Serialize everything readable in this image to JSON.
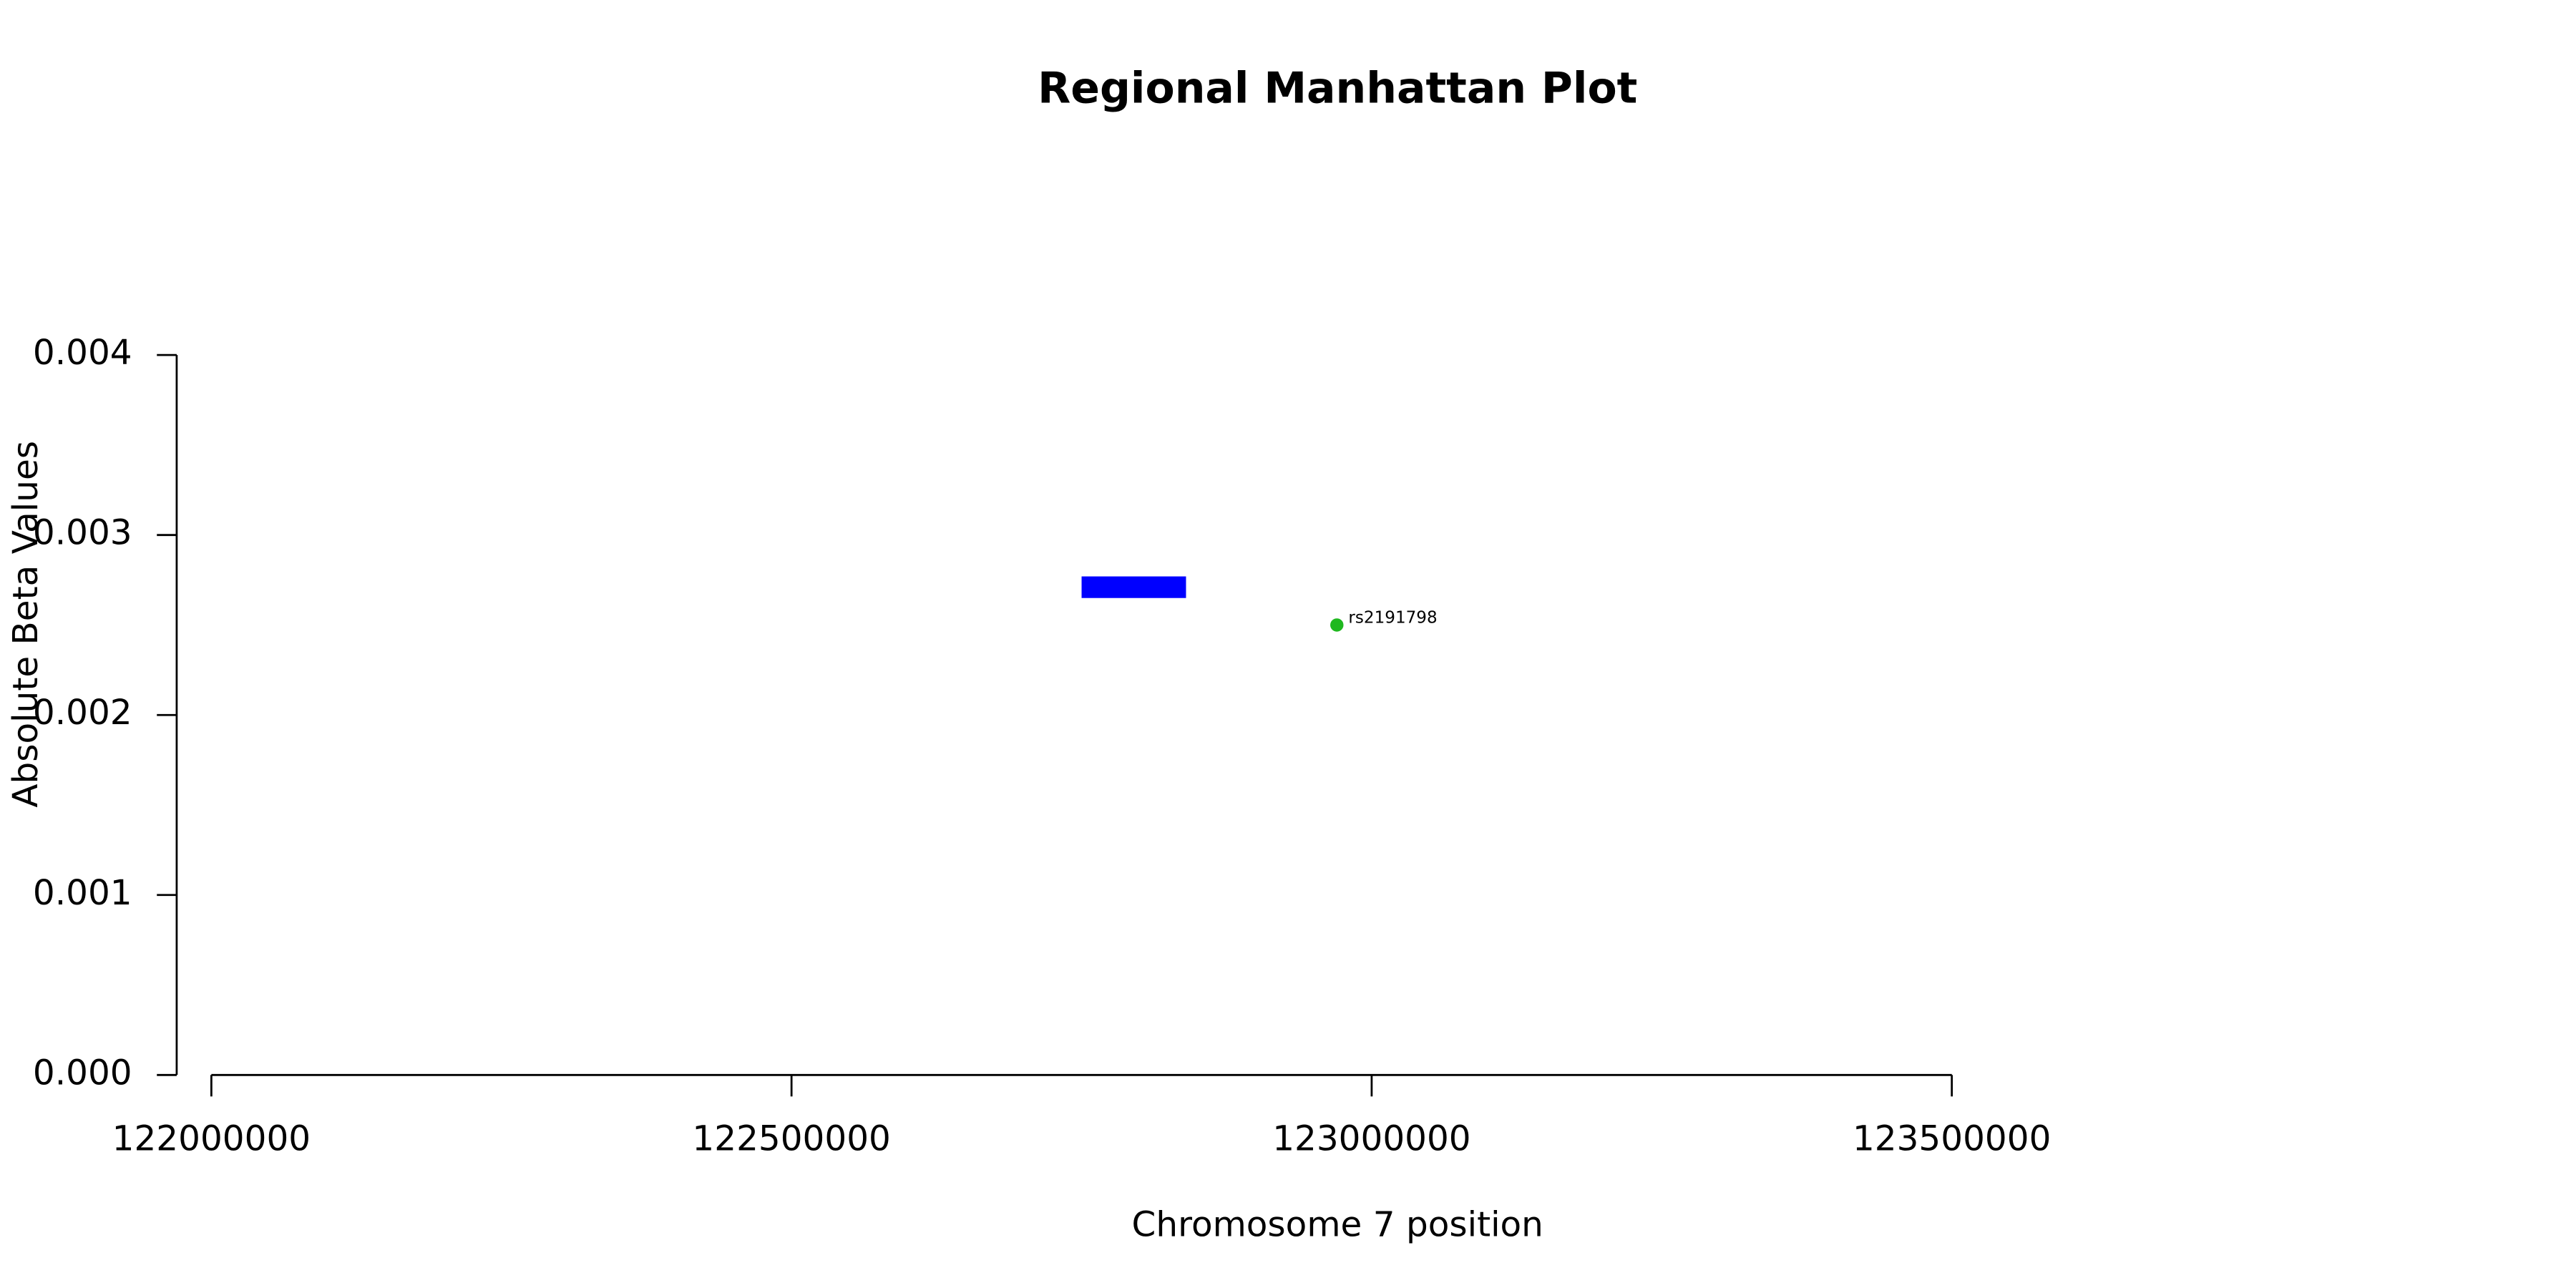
{
  "chart_data": {
    "type": "scatter",
    "title": "Regional Manhattan Plot",
    "x_label": "Chromosome 7 position",
    "y_label": "Absolute Beta Values",
    "xlim": [
      122000000,
      123500000
    ],
    "ylim": [
      0,
      0.004
    ],
    "xticks": [
      122000000,
      122500000,
      123000000,
      123500000
    ],
    "yticks": [
      {
        "value": 0,
        "label": "0.000"
      },
      0.001,
      0.002,
      0.003,
      0.004
    ],
    "series": [
      {
        "color": "#1fb81f",
        "x": [
          122970000
        ],
        "values": [
          0.0025
        ],
        "labels": [
          "rs2191798"
        ]
      }
    ],
    "regions": [
      {
        "color": "#0000ff",
        "x": [
          122750000,
          122840000
        ],
        "y": [
          0.00265,
          0.00277
        ]
      }
    ]
  }
}
